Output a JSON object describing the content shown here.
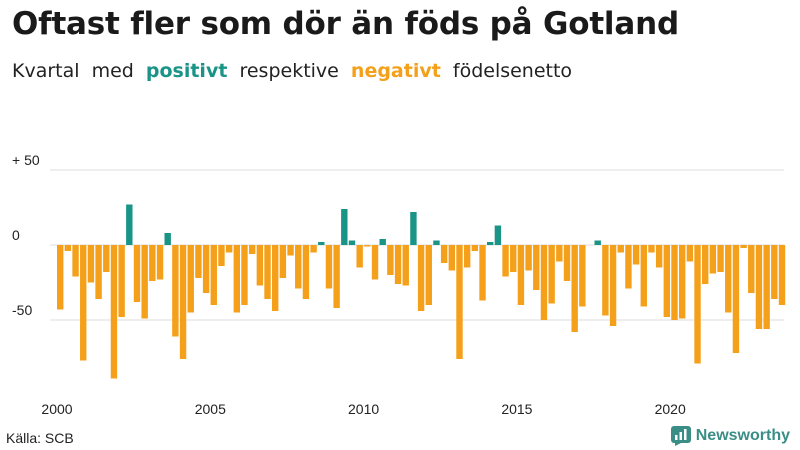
{
  "title": "Oftast fler som dör än föds på Gotland",
  "subtitle": {
    "part1": "Kvartal med",
    "positive": "positivt",
    "part2": "respektive",
    "negative": "negativt",
    "part3": "födelsenetto"
  },
  "source": "Källa: SCB",
  "brand": "Newsworthy",
  "colors": {
    "positive": "#1a9487",
    "negative": "#f5a01a",
    "grid": "#dddddd",
    "text": "#222222"
  },
  "chart_data": {
    "type": "bar",
    "title": "Oftast fler som dör än föds på Gotland",
    "xlabel": "",
    "ylabel": "",
    "ylim": [
      -90,
      50
    ],
    "y_ticks": [
      50,
      0,
      -50
    ],
    "y_tick_labels": [
      "+ 50",
      "0",
      "-50"
    ],
    "x_ticks": [
      2000,
      2005,
      2010,
      2015,
      2020
    ],
    "x_tick_labels": [
      "2000",
      "2005",
      "2010",
      "2015",
      "2020"
    ],
    "grid": true,
    "start_year": 2000,
    "series": [
      {
        "name": "Födelsenetto per kvartal",
        "values": [
          -43,
          -4,
          -21,
          -77,
          -25,
          -36,
          -18,
          -89,
          -48,
          27,
          -38,
          -49,
          -24,
          -23,
          8,
          -61,
          -76,
          -45,
          -22,
          -32,
          -40,
          -14,
          -5,
          -45,
          -40,
          -6,
          -27,
          -36,
          -44,
          -22,
          -7,
          -29,
          -36,
          -5,
          2,
          -29,
          -42,
          24,
          3,
          -15,
          -1,
          -23,
          4,
          -20,
          -26,
          -27,
          22,
          -44,
          -40,
          3,
          -12,
          -17,
          -76,
          -15,
          -4,
          -37,
          2,
          13,
          -21,
          -18,
          -40,
          -17,
          -30,
          -50,
          -39,
          -11,
          -24,
          -58,
          -41,
          0,
          3,
          -47,
          -54,
          -5,
          -29,
          -13,
          -41,
          -5,
          -15,
          -48,
          -50,
          -49,
          -11,
          -79,
          -26,
          -19,
          -18,
          -45,
          -72,
          -2,
          -32,
          -56,
          -56,
          -36,
          -40
        ]
      }
    ]
  }
}
